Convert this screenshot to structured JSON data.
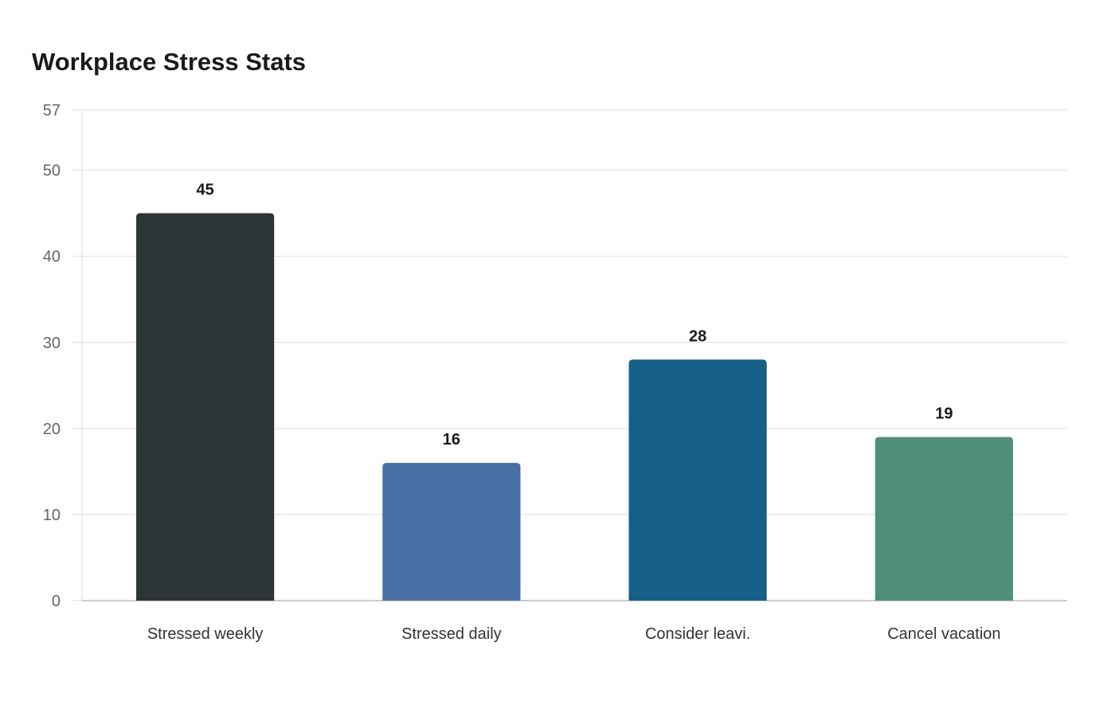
{
  "chart_data": {
    "type": "bar",
    "title": "Workplace Stress Stats",
    "xlabel": "",
    "ylabel": "",
    "categories": [
      "Stressed weekly",
      "Stressed daily",
      "Consider leavi.",
      "Cancel vacation"
    ],
    "values": [
      45,
      16,
      28,
      19
    ],
    "bar_colors": [
      "#2d3436",
      "#4a6fa5",
      "#166088",
      "#4f8f7a"
    ],
    "ylim": [
      0,
      57
    ],
    "yticks": [
      0,
      10,
      20,
      30,
      40,
      50,
      57
    ],
    "grid": true,
    "legend": "none"
  },
  "colors": {
    "grid": "#e8e8e8",
    "axis": "#cccccc"
  }
}
